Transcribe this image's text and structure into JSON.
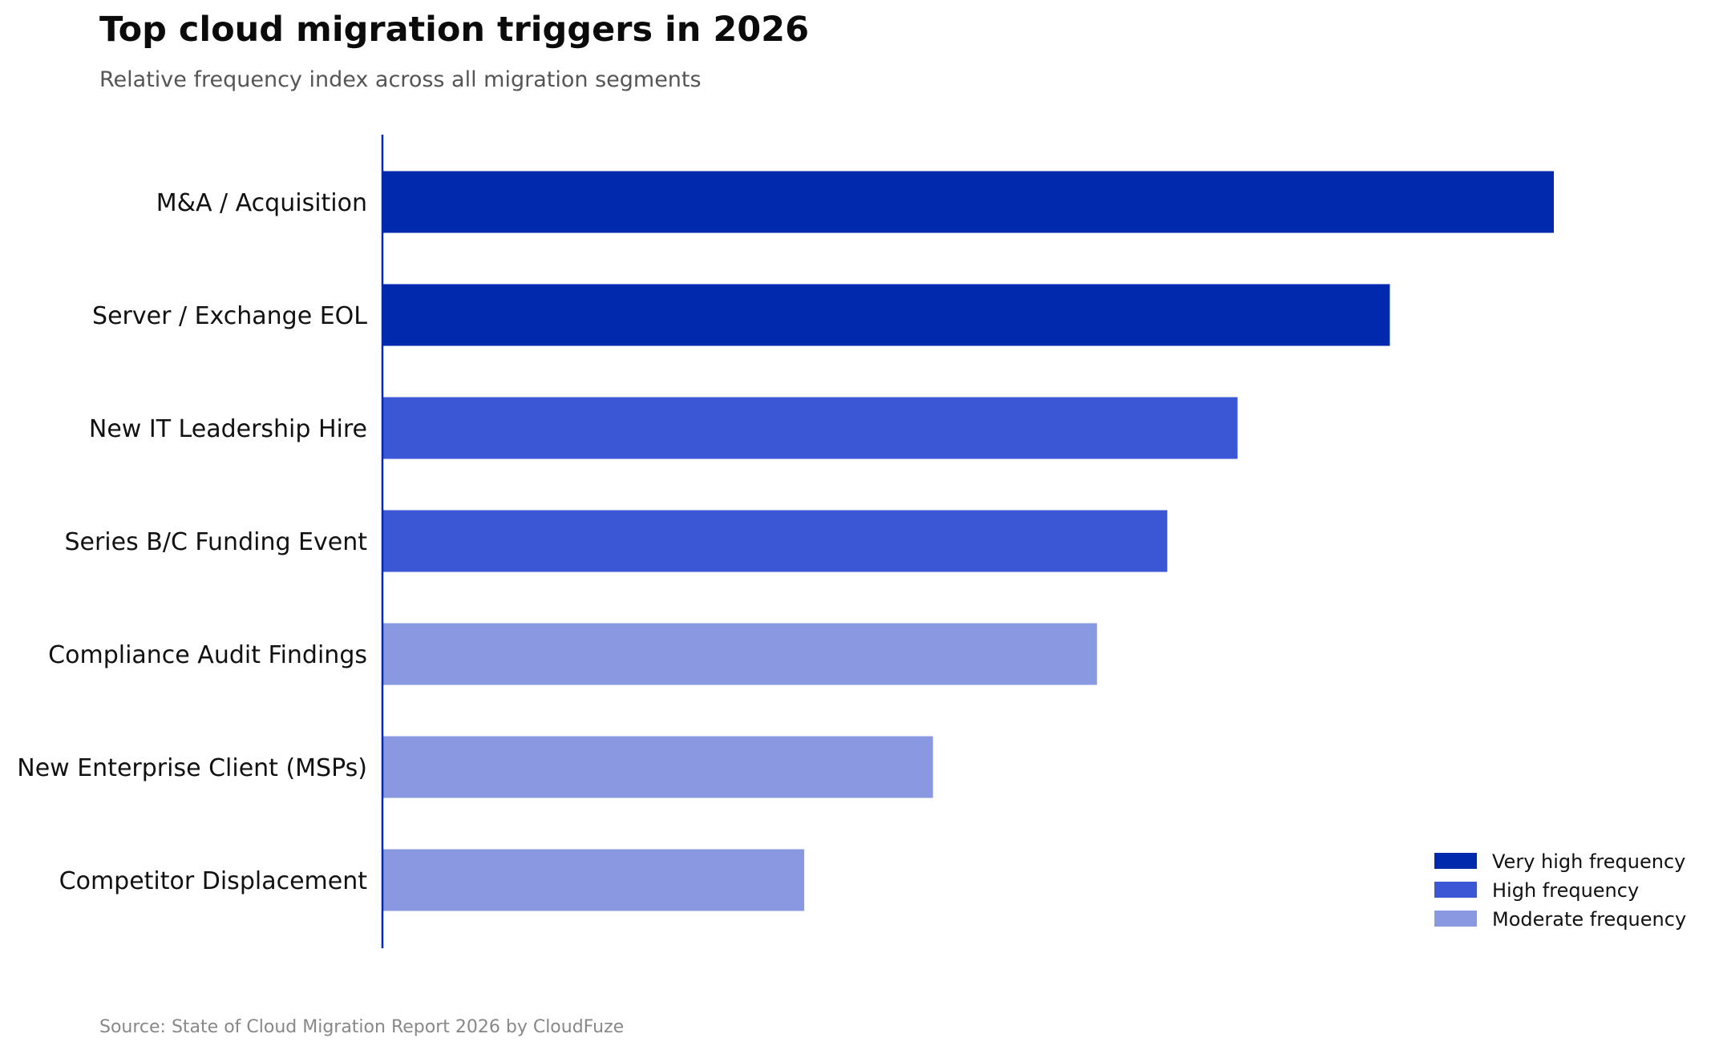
{
  "chart_data": {
    "type": "bar",
    "orientation": "horizontal",
    "title": "Top cloud migration triggers in 2026",
    "subtitle": "Relative frequency index across all migration segments",
    "source": "Source: State of Cloud Migration Report 2026 by CloudFuze",
    "xlabel": "",
    "ylabel": "",
    "xlim": [
      0,
      100
    ],
    "grid": false,
    "legend_placement": "bottom-right",
    "categories": [
      "M&A / Acquisition",
      "Server / Exchange EOL",
      "New IT Leadership Hire",
      "Series B/C Funding Event",
      "Compliance Audit Findings",
      "New Enterprise Client (MSPs)",
      "Competitor Displacement"
    ],
    "values": [
      100,
      86,
      73,
      67,
      61,
      47,
      36
    ],
    "tiers": [
      "Very high frequency",
      "Very high frequency",
      "High frequency",
      "High frequency",
      "Moderate frequency",
      "Moderate frequency",
      "Moderate frequency"
    ],
    "legend": [
      {
        "name": "Very high frequency",
        "color": "#0029ad"
      },
      {
        "name": "High frequency",
        "color": "#3b57d6"
      },
      {
        "name": "Moderate frequency",
        "color": "#8999e1"
      }
    ],
    "axis_color": "#0029ad"
  }
}
